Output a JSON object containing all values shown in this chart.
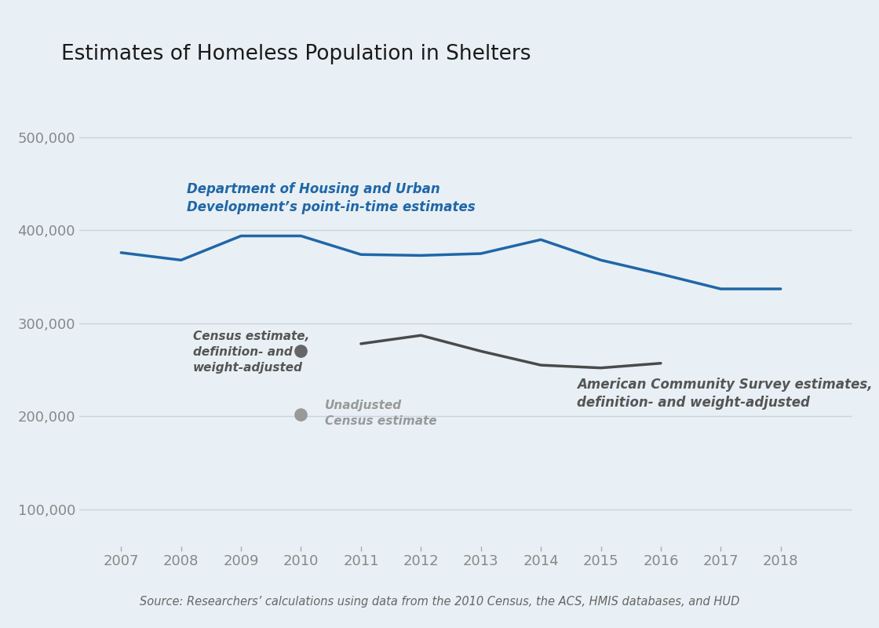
{
  "title": "Estimates of Homeless Population in Shelters",
  "background_color": "#e8f0f5",
  "plot_background_color": "#e8f0f5",
  "source_text": "Source: Researchers’ calculations using data from the 2010 Census, the ACS, HMIS databases, and HUD",
  "hud_years": [
    2007,
    2008,
    2009,
    2010,
    2011,
    2012,
    2013,
    2014,
    2015,
    2016,
    2017,
    2018
  ],
  "hud_values": [
    376000,
    368000,
    394000,
    394000,
    374000,
    373000,
    375000,
    390000,
    368000,
    353000,
    337000,
    337000
  ],
  "hud_color": "#2066a8",
  "hud_label_line1": "Department of Housing and Urban",
  "hud_label_line2": "Development’s point-in-time estimates",
  "acs_years": [
    2011,
    2012,
    2013,
    2014,
    2015,
    2016
  ],
  "acs_values": [
    278000,
    287000,
    270000,
    255000,
    252000,
    257000
  ],
  "acs_color": "#4a4a4a",
  "acs_label_line1": "American Community Survey estimates,",
  "acs_label_line2": "definition- and weight-adjusted",
  "census_adjusted_year": 2010,
  "census_adjusted_value": 270000,
  "census_adjusted_color": "#666666",
  "census_adjusted_label_line1": "Census estimate,",
  "census_adjusted_label_line2": "definition- and",
  "census_adjusted_label_line3": "weight-adjusted",
  "census_unadjusted_year": 2010,
  "census_unadjusted_value": 202000,
  "census_unadjusted_color": "#999999",
  "census_unadjusted_label_line1": "Unadjusted",
  "census_unadjusted_label_line2": "Census estimate",
  "yticks": [
    100000,
    200000,
    300000,
    400000,
    500000
  ],
  "ylim": [
    60000,
    560000
  ],
  "xlim": [
    2006.3,
    2019.2
  ],
  "xticks": [
    2007,
    2008,
    2009,
    2010,
    2011,
    2012,
    2013,
    2014,
    2015,
    2016,
    2017,
    2018
  ],
  "grid_color": "#c8d5dc",
  "tick_label_color": "#888888",
  "axis_tick_color": "#aaaaaa"
}
